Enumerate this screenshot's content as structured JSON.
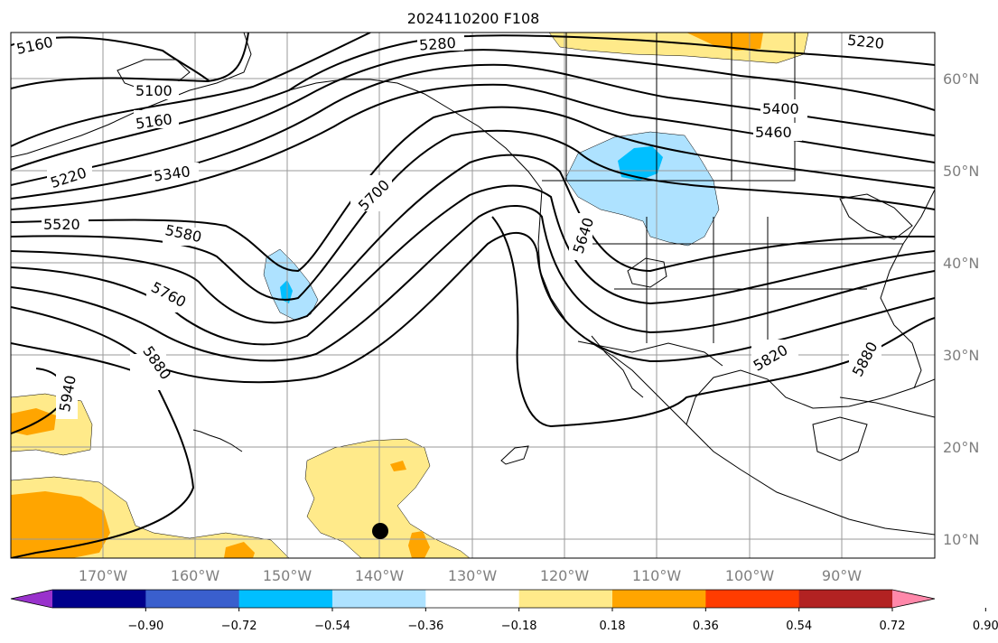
{
  "title": "2024110200 F108",
  "lon_labels": [
    "170°W",
    "160°W",
    "150°W",
    "140°W",
    "130°W",
    "120°W",
    "110°W",
    "100°W",
    "90°W"
  ],
  "lat_labels": [
    "60°N",
    "50°N",
    "40°N",
    "30°N",
    "20°N",
    "10°N"
  ],
  "contour_labels": [
    "5160",
    "5100",
    "5160",
    "5220",
    "5340",
    "5520",
    "5580",
    "5760",
    "5880",
    "5940",
    "5280",
    "5220",
    "5400",
    "5460",
    "5700",
    "5640",
    "5820",
    "5880"
  ],
  "colorbar": {
    "ticks": [
      "−0.90",
      "−0.72",
      "−0.54",
      "−0.36",
      "−0.18",
      "0.18",
      "0.36",
      "0.54",
      "0.72",
      "0.90"
    ],
    "colors": [
      "#9932cc",
      "#00008b",
      "#3a5fcd",
      "#00bfff",
      "#aee2ff",
      "#ffffff",
      "#ffea8a",
      "#ffa500",
      "#ff3c00",
      "#b22222",
      "#ff88aa"
    ]
  },
  "fill_colors": {
    "pos_light": "#ffea8a",
    "pos_mid": "#ffa500",
    "neg_light": "#aee2ff",
    "neg_mid": "#00bfff"
  }
}
